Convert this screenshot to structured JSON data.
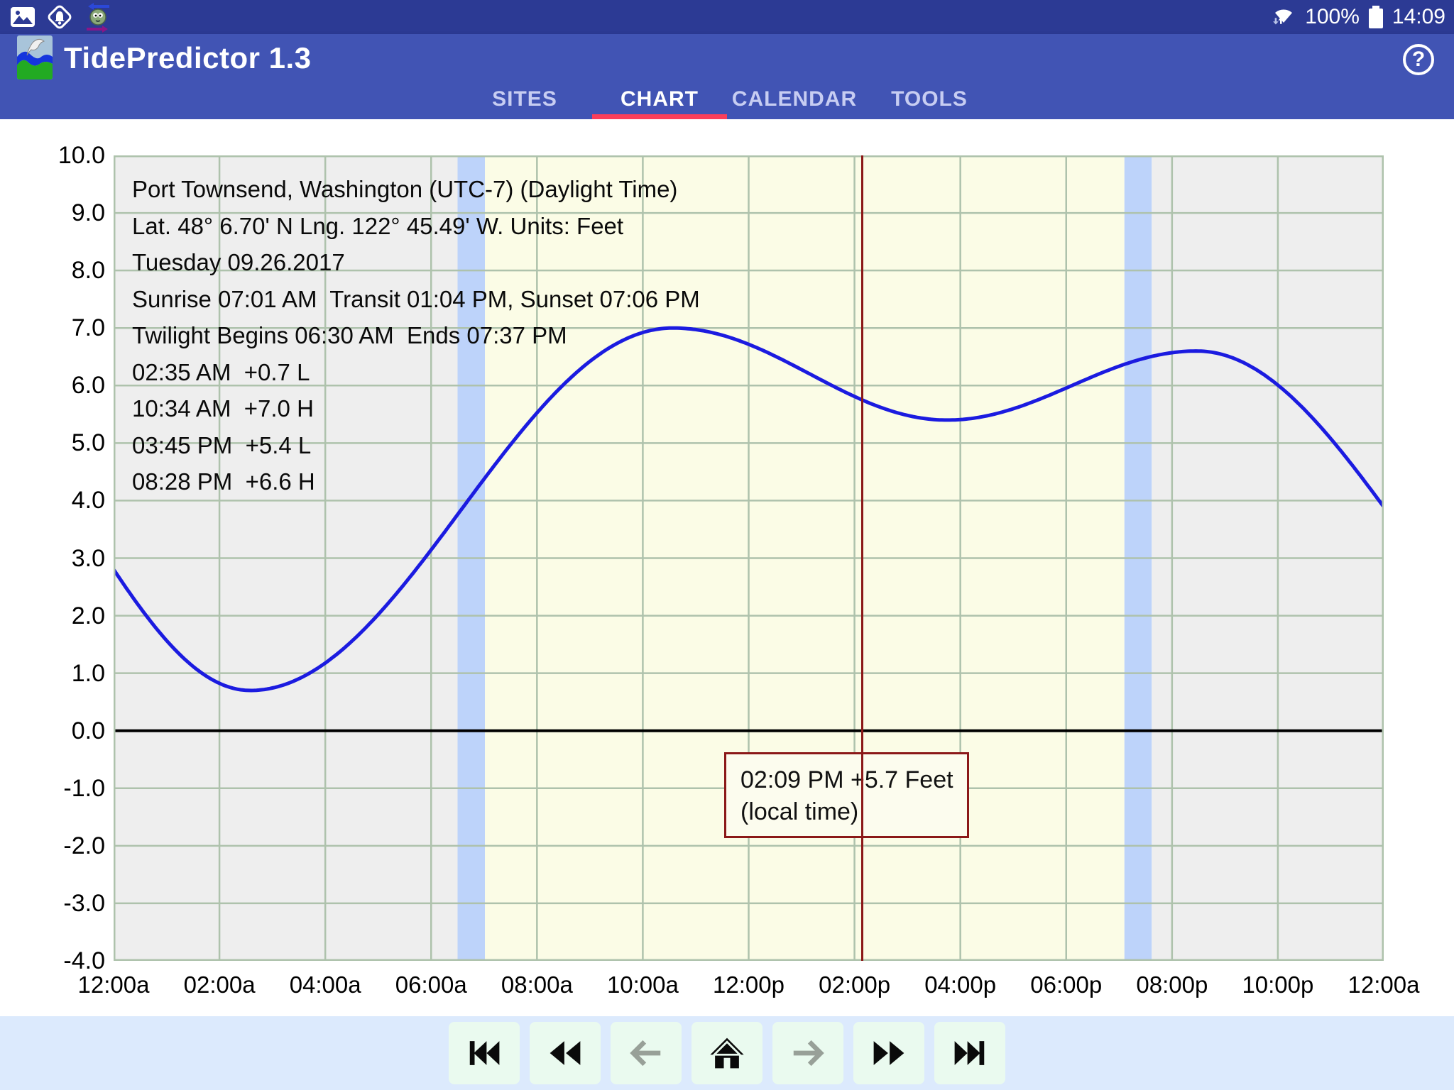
{
  "status_bar": {
    "time": "14:09",
    "battery": "100%",
    "notification_icons": [
      "gallery",
      "navigation-alert",
      "sync-avatar"
    ],
    "wifi": "wifi-connected"
  },
  "app_bar": {
    "title": "TidePredictor 1.3",
    "help_label": "?"
  },
  "tabs": [
    {
      "id": "sites",
      "label": "SITES",
      "active": false
    },
    {
      "id": "chart",
      "label": "CHART",
      "active": true
    },
    {
      "id": "calendar",
      "label": "CALENDAR",
      "active": false
    },
    {
      "id": "tools",
      "label": "TOOLS",
      "active": false
    }
  ],
  "chart_data": {
    "type": "line",
    "station_lines": [
      "Port Townsend, Washington (UTC-7) (Daylight Time)",
      "Lat. 48° 6.70' N Lng. 122° 45.49' W. Units: Feet",
      "Tuesday 09.26.2017",
      "Sunrise 07:01 AM  Transit 01:04 PM, Sunset 07:06 PM",
      "Twilight Begins 06:30 AM  Ends 07:37 PM"
    ],
    "tide_events": [
      {
        "time": "02:35 AM",
        "height": "+0.7",
        "kind": "L",
        "hour": 2.583,
        "feet": 0.7
      },
      {
        "time": "10:34 AM",
        "height": "+7.0",
        "kind": "H",
        "hour": 10.567,
        "feet": 7.0
      },
      {
        "time": "03:45 PM",
        "height": "+5.4",
        "kind": "L",
        "hour": 15.75,
        "feet": 5.4
      },
      {
        "time": "08:28 PM",
        "height": "+6.6",
        "kind": "H",
        "hour": 20.467,
        "feet": 6.6
      }
    ],
    "x_tick_labels": [
      "12:00a",
      "02:00a",
      "04:00a",
      "06:00a",
      "08:00a",
      "10:00a",
      "12:00p",
      "02:00p",
      "04:00p",
      "06:00p",
      "08:00p",
      "10:00p",
      "12:00a"
    ],
    "x_tick_hours": [
      0,
      2,
      4,
      6,
      8,
      10,
      12,
      14,
      16,
      18,
      20,
      22,
      24
    ],
    "y_tick_labels": [
      "10.0",
      "9.0",
      "8.0",
      "7.0",
      "6.0",
      "5.0",
      "4.0",
      "3.0",
      "2.0",
      "1.0",
      "0.0",
      "-1.0",
      "-2.0",
      "-3.0",
      "-4.0"
    ],
    "ylim": [
      -4,
      10
    ],
    "x_range_hours": [
      0,
      24
    ],
    "grid": true,
    "sun_times": {
      "twilight_begin_h": 6.5,
      "sunrise_h": 7.017,
      "sunset_h": 19.1,
      "twilight_end_h": 19.617
    },
    "current_time_h": 14.15,
    "cursor_label": {
      "line1": "02:09 PM +5.7 Feet",
      "line2": "(local time)"
    },
    "curve_anchors": [
      {
        "h": -3.5,
        "ft": 6.2
      },
      {
        "h": 2.583,
        "ft": 0.7
      },
      {
        "h": 10.567,
        "ft": 7.0
      },
      {
        "h": 15.75,
        "ft": 5.4
      },
      {
        "h": 20.467,
        "ft": 6.6
      },
      {
        "h": 28.0,
        "ft": 0.6
      }
    ],
    "colors": {
      "night_bg": "#eeeeee",
      "twilight_bg": "#bdd3fa",
      "day_bg": "#fbfce6",
      "grid": "#aec2ac",
      "curve": "#1b1be0",
      "zero_line": "#000000",
      "time_cursor": "#8b1818",
      "tooltip_bg": "#fcfcee"
    }
  },
  "bottom_nav": {
    "buttons": [
      {
        "name": "skip-to-start",
        "icon": "skip-start",
        "style": "black"
      },
      {
        "name": "rewind",
        "icon": "rewind",
        "style": "black"
      },
      {
        "name": "step-back",
        "icon": "arrow-left",
        "style": "gray"
      },
      {
        "name": "home",
        "icon": "home",
        "style": "black"
      },
      {
        "name": "step-forward",
        "icon": "arrow-right",
        "style": "gray"
      },
      {
        "name": "fast-forward",
        "icon": "fast-forward",
        "style": "black"
      },
      {
        "name": "skip-to-end",
        "icon": "skip-end",
        "style": "black"
      }
    ]
  }
}
